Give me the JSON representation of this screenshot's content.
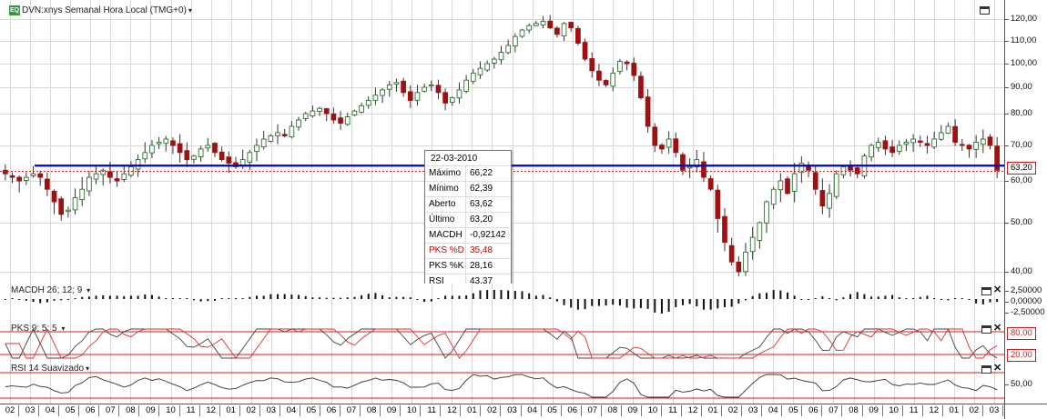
{
  "main_panel": {
    "title": "DVN:xnys Semanal Hora Local (TMG+0)",
    "title_caret": "▾",
    "logo_text": "EQ",
    "price_ticks": [
      "120,00",
      "110,00",
      "100,00",
      "90,00",
      "80,00",
      "70,00",
      "60,00",
      "50,00",
      "40,00"
    ],
    "price_tick_values": [
      120,
      110,
      100,
      90,
      80,
      70,
      60,
      50,
      40
    ],
    "last_price_tag": "63,20",
    "horizontal_line_value": 64.3,
    "last_value_line": 63.2
  },
  "tooltip": {
    "date": "22-03-2010",
    "rows": [
      {
        "label": "Máximo",
        "value": "66,22",
        "highlight": false
      },
      {
        "label": "Mínimo",
        "value": "62,39",
        "highlight": false
      },
      {
        "label": "Aberto",
        "value": "63,62",
        "highlight": false
      },
      {
        "label": "Último",
        "value": "63,20",
        "highlight": false
      },
      {
        "label": "MACDH",
        "value": "-0,92142",
        "highlight": false
      },
      {
        "label": "PKS %D",
        "value": "35,48",
        "highlight": true
      },
      {
        "label": "PKS %K",
        "value": "28,16",
        "highlight": false
      },
      {
        "label": "RSI",
        "value": "43,37",
        "highlight": false
      }
    ]
  },
  "macd_panel": {
    "title": "MACDH 26; 12; 9",
    "caret": "▾",
    "ticks": [
      "2,50000",
      "0,00000",
      "-2,50000"
    ]
  },
  "pks_panel": {
    "title": "PKS 9; 5; 5",
    "caret": "▾",
    "upper_tag": "80,00",
    "lower_tag": "20,00"
  },
  "rsi_panel": {
    "title": "RSI 14 Suavizado",
    "caret": "▾",
    "ticks": [
      "50,00"
    ]
  },
  "x_axis": {
    "labels": [
      "02",
      "03",
      "04",
      "05",
      "06",
      "07",
      "08",
      "09",
      "10",
      "11",
      "12",
      "01",
      "02",
      "03",
      "04",
      "05",
      "06",
      "07",
      "08",
      "09",
      "10",
      "11",
      "12",
      "01",
      "02",
      "03",
      "04",
      "05",
      "06",
      "07",
      "08",
      "09",
      "10",
      "11",
      "12",
      "01",
      "02",
      "03",
      "04",
      "05",
      "06",
      "07",
      "08",
      "09",
      "10",
      "11",
      "12",
      "01",
      "02",
      "03"
    ]
  },
  "colors": {
    "bull_candle": "#2f6f2f",
    "bear_candle": "#a01010",
    "blue_line": "#0000c0",
    "red_line": "#d02020",
    "grid": "#d8d8d8"
  },
  "chart_data": {
    "type": "candlestick",
    "ylim": [
      37,
      125
    ],
    "weekly_close": [
      62,
      61,
      60,
      61,
      62,
      61,
      58,
      55,
      52,
      53,
      56,
      58,
      61,
      62,
      63,
      61,
      60,
      62,
      64,
      66,
      68,
      70,
      71,
      72,
      70,
      68,
      66,
      67,
      69,
      70,
      68,
      66,
      65,
      64,
      66,
      68,
      70,
      72,
      73,
      74,
      73,
      76,
      78,
      80,
      81,
      82,
      80,
      78,
      77,
      79,
      81,
      83,
      85,
      87,
      89,
      91,
      92,
      88,
      85,
      88,
      90,
      91,
      88,
      84,
      86,
      89,
      93,
      96,
      98,
      100,
      102,
      105,
      108,
      112,
      115,
      117,
      118,
      119,
      116,
      113,
      118,
      116,
      109,
      102,
      97,
      93,
      91,
      96,
      101,
      100,
      95,
      86,
      76,
      70,
      69,
      72,
      68,
      63,
      64,
      66,
      61,
      58,
      51,
      46,
      42,
      40,
      44,
      47,
      50,
      55,
      58,
      60,
      57,
      62,
      65,
      63,
      58,
      54,
      57,
      62,
      64,
      63,
      62,
      67,
      70,
      71,
      69,
      68,
      70,
      71,
      72,
      71,
      70,
      72,
      74,
      76,
      71,
      70,
      69,
      71,
      72,
      70,
      63
    ]
  }
}
